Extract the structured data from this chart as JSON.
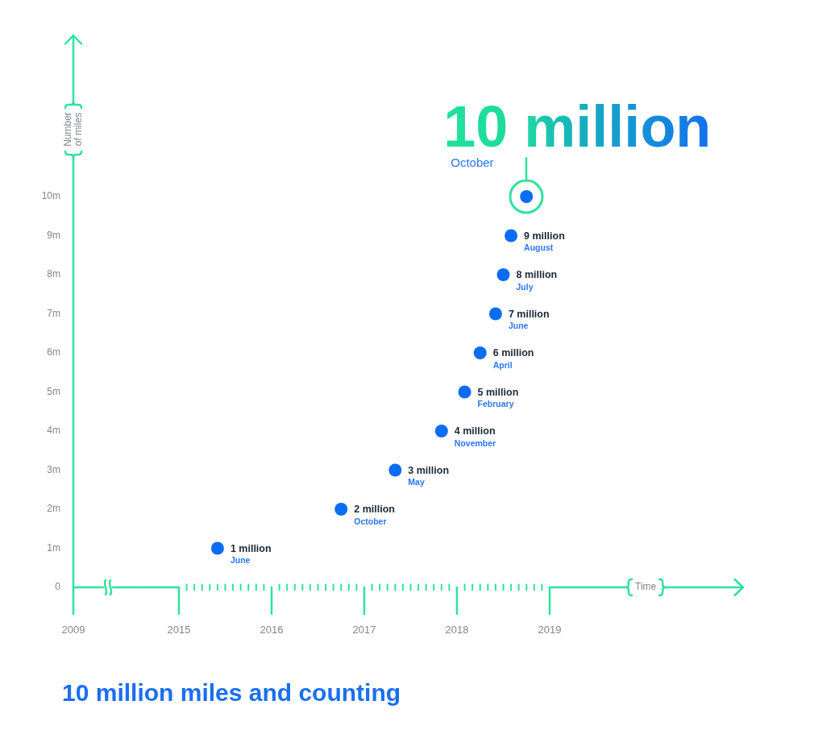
{
  "chart_data": [
    {
      "type": "scatter",
      "ylabel": "Number of miles",
      "categories": [
        "2009"
      ],
      "ylim": [
        0,
        11
      ],
      "yticks": [
        0,
        {
          "value": 1,
          "label": "1m"
        },
        {
          "value": 2,
          "label": "2m"
        },
        {
          "value": 3,
          "label": "3m"
        },
        {
          "value": 4,
          "label": "4m"
        },
        {
          "value": 5,
          "label": "5m"
        },
        {
          "value": 6,
          "label": "6m"
        },
        {
          "value": 7,
          "label": "7m"
        },
        {
          "value": 8,
          "label": "8m"
        },
        {
          "value": 9,
          "label": "9m"
        },
        {
          "value": 10,
          "label": "10m"
        }
      ]
    },
    {
      "type": "scatter",
      "title": "10 million miles and counting",
      "x": [
        "2015-06",
        "2016-10",
        "2017-05",
        "2017-11",
        "2018-02",
        "2018-04",
        "2018-06",
        "2018-07",
        "2018-08",
        "2018-10"
      ],
      "values": [
        1,
        2,
        3,
        4,
        5,
        6,
        7,
        8,
        9,
        10
      ],
      "color": "#0b6cf4",
      "value_labels": [
        "1 million",
        "2 million",
        "3 million",
        "4 million",
        "5 million",
        "6 million",
        "7 million",
        "8 million",
        "9 million",
        "10 million"
      ],
      "annotations": [
        {
          "text": "June",
          "x": "2015-06",
          "y": 1
        },
        {
          "text": "October",
          "x": "2016-10",
          "y": 2
        },
        {
          "text": "May",
          "x": "2017-05",
          "y": 3
        },
        {
          "text": "November",
          "x": "2017-11",
          "y": 4
        },
        {
          "text": "February",
          "x": "2018-02",
          "y": 5
        },
        {
          "text": "April",
          "x": "2018-04",
          "y": 6
        },
        {
          "text": "June",
          "x": "2018-06",
          "y": 7
        },
        {
          "text": "July",
          "x": "2018-07",
          "y": 8
        },
        {
          "text": "August",
          "x": "2018-08",
          "y": 9
        },
        "October",
        "Time"
      ],
      "marker": "circle",
      "xlim": [
        "2015",
        "2019"
      ],
      "xticks": [
        "2015",
        {
          "value": "2015-02",
          "label": null
        },
        {
          "value": "2015-03",
          "label": null
        },
        {
          "value": "2015-04",
          "label": null
        },
        {
          "value": "2015-05",
          "label": null
        },
        {
          "value": "2015-06",
          "label": null
        },
        {
          "value": "2015-07",
          "label": null
        },
        {
          "value": "2015-08",
          "label": null
        },
        {
          "value": "2015-09",
          "label": null
        },
        {
          "value": "2015-10",
          "label": null
        },
        {
          "value": "2015-11",
          "label": null
        },
        {
          "value": "2015-12",
          "label": null
        },
        "2016",
        {
          "value": "2016-02",
          "label": null
        },
        {
          "value": "2016-03",
          "label": null
        },
        {
          "value": "2016-04",
          "label": null
        },
        {
          "value": "2016-05",
          "label": null
        },
        {
          "value": "2016-06",
          "label": null
        },
        {
          "value": "2016-07",
          "label": null
        },
        {
          "value": "2016-08",
          "label": null
        },
        {
          "value": "2016-09",
          "label": null
        },
        {
          "value": "2016-10",
          "label": null
        },
        {
          "value": "2016-11",
          "label": null
        },
        {
          "value": "2016-12",
          "label": null
        },
        "2017",
        {
          "value": "2017-02",
          "label": null
        },
        {
          "value": "2017-03",
          "label": null
        },
        {
          "value": "2017-04",
          "label": null
        },
        {
          "value": "2017-05",
          "label": null
        },
        {
          "value": "2017-06",
          "label": null
        },
        {
          "value": "2017-07",
          "label": null
        },
        {
          "value": "2017-08",
          "label": null
        },
        {
          "value": "2017-09",
          "label": null
        },
        {
          "value": "2017-10",
          "label": null
        },
        {
          "value": "2017-11",
          "label": null
        },
        {
          "value": "2017-12",
          "label": null
        },
        "2018",
        {
          "value": "2018-02",
          "label": null
        },
        {
          "value": "2018-03",
          "label": null
        },
        {
          "value": "2018-04",
          "label": null
        },
        {
          "value": "2018-05",
          "label": null
        },
        {
          "value": "2018-06",
          "label": null
        },
        {
          "value": "2018-07",
          "label": null
        },
        {
          "value": "2018-08",
          "label": null
        },
        {
          "value": "2018-09",
          "label": null
        },
        {
          "value": "2018-10",
          "label": null
        },
        {
          "value": "2018-11",
          "label": null
        },
        {
          "value": "2018-12",
          "label": null
        },
        "2019"
      ],
      "tick_labels": "x"
    }
  ]
}
